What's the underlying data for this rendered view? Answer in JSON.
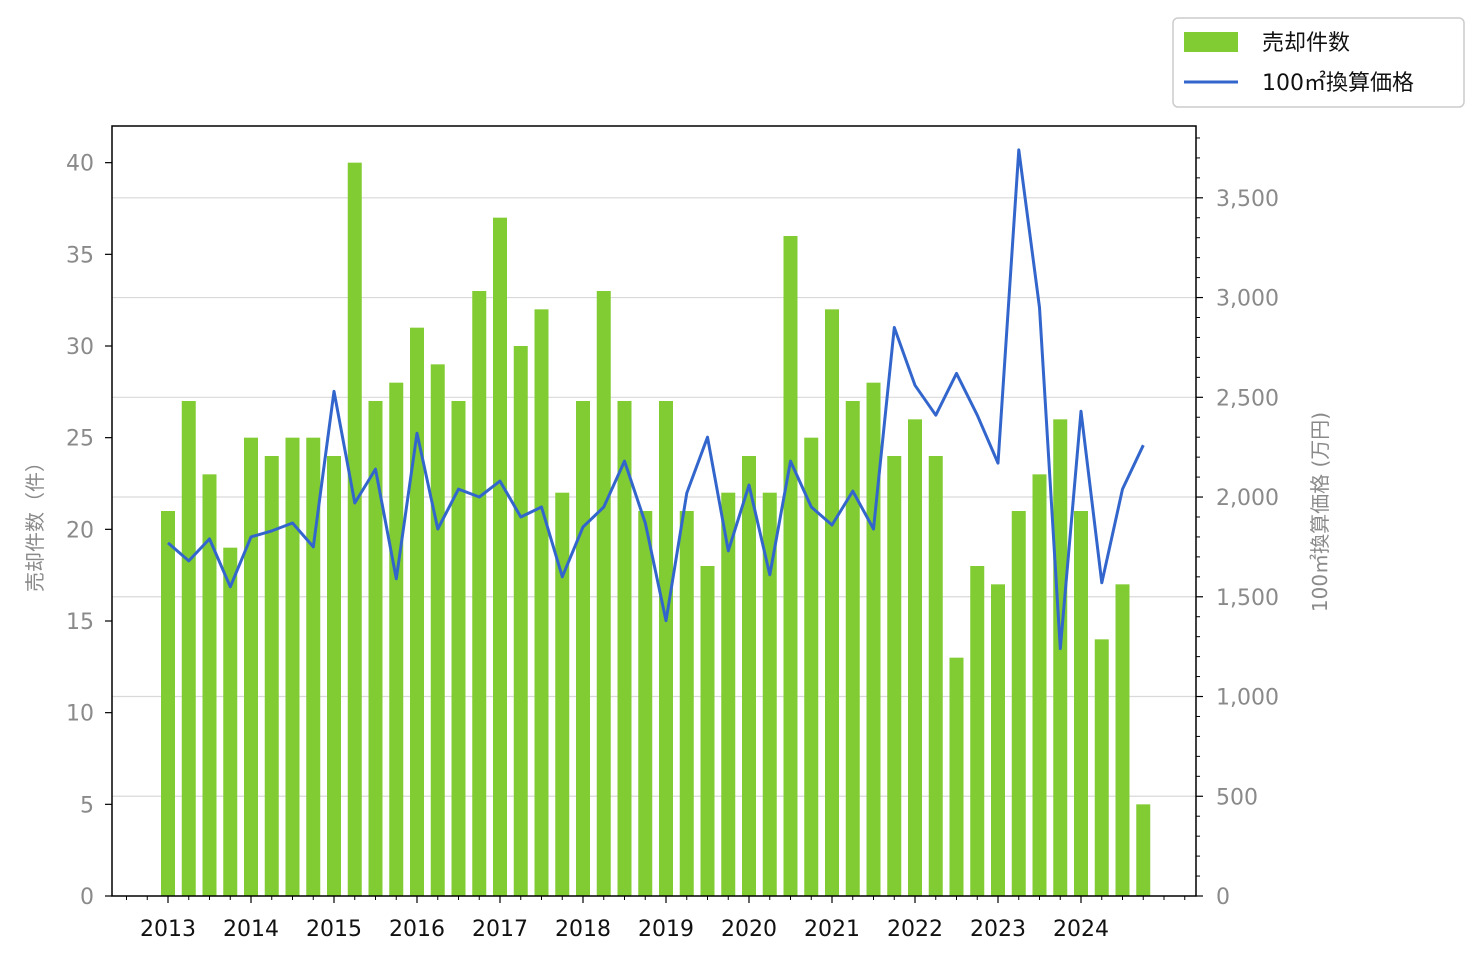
{
  "chart_data": {
    "type": "bar",
    "x_tick_labels": [
      "2013",
      "2014",
      "2015",
      "2016",
      "2017",
      "2018",
      "2019",
      "2020",
      "2021",
      "2022",
      "2023",
      "2024"
    ],
    "quarters_per_year": 4,
    "series": [
      {
        "name": "売却件数",
        "type": "bar",
        "axis": "left",
        "color": "#82cc33",
        "values": [
          21,
          27,
          23,
          19,
          25,
          24,
          25,
          25,
          24,
          40,
          27,
          28,
          31,
          29,
          27,
          33,
          37,
          30,
          32,
          22,
          27,
          33,
          27,
          21,
          27,
          21,
          18,
          22,
          24,
          22,
          36,
          25,
          32,
          27,
          28,
          24,
          26,
          24,
          13,
          18,
          17,
          21,
          23,
          26,
          21,
          14,
          17,
          5
        ]
      },
      {
        "name": "100㎡換算価格",
        "type": "line",
        "axis": "right",
        "color": "#3366cc",
        "values": [
          1770,
          1680,
          1790,
          1550,
          1800,
          1830,
          1870,
          1750,
          2530,
          1970,
          2140,
          1590,
          2320,
          1840,
          2040,
          2000,
          2080,
          1900,
          1950,
          1600,
          1850,
          1950,
          2180,
          1870,
          1380,
          2020,
          2300,
          1730,
          2060,
          1610,
          2180,
          1950,
          1860,
          2030,
          1840,
          2850,
          2560,
          2410,
          2620,
          2410,
          2170,
          3740,
          2950,
          1240,
          2430,
          1570,
          2040,
          2260
        ]
      }
    ],
    "y_left": {
      "label": "売却件数（件）",
      "ylim": [
        0,
        42
      ],
      "ticks": [
        0,
        5,
        10,
        15,
        20,
        25,
        30,
        35,
        40
      ]
    },
    "y_right": {
      "label": "100㎡換算価格 (万円)",
      "ylim": [
        0,
        3860
      ],
      "ticks": [
        0,
        500,
        1000,
        1500,
        2000,
        2500,
        3000,
        3500
      ],
      "tick_labels": [
        "0",
        "500",
        "1,000",
        "1,500",
        "2,000",
        "2,500",
        "3,000",
        "3,500"
      ]
    },
    "grid": "horizontal, right axis",
    "legend_position": "top-right, outside plot"
  }
}
